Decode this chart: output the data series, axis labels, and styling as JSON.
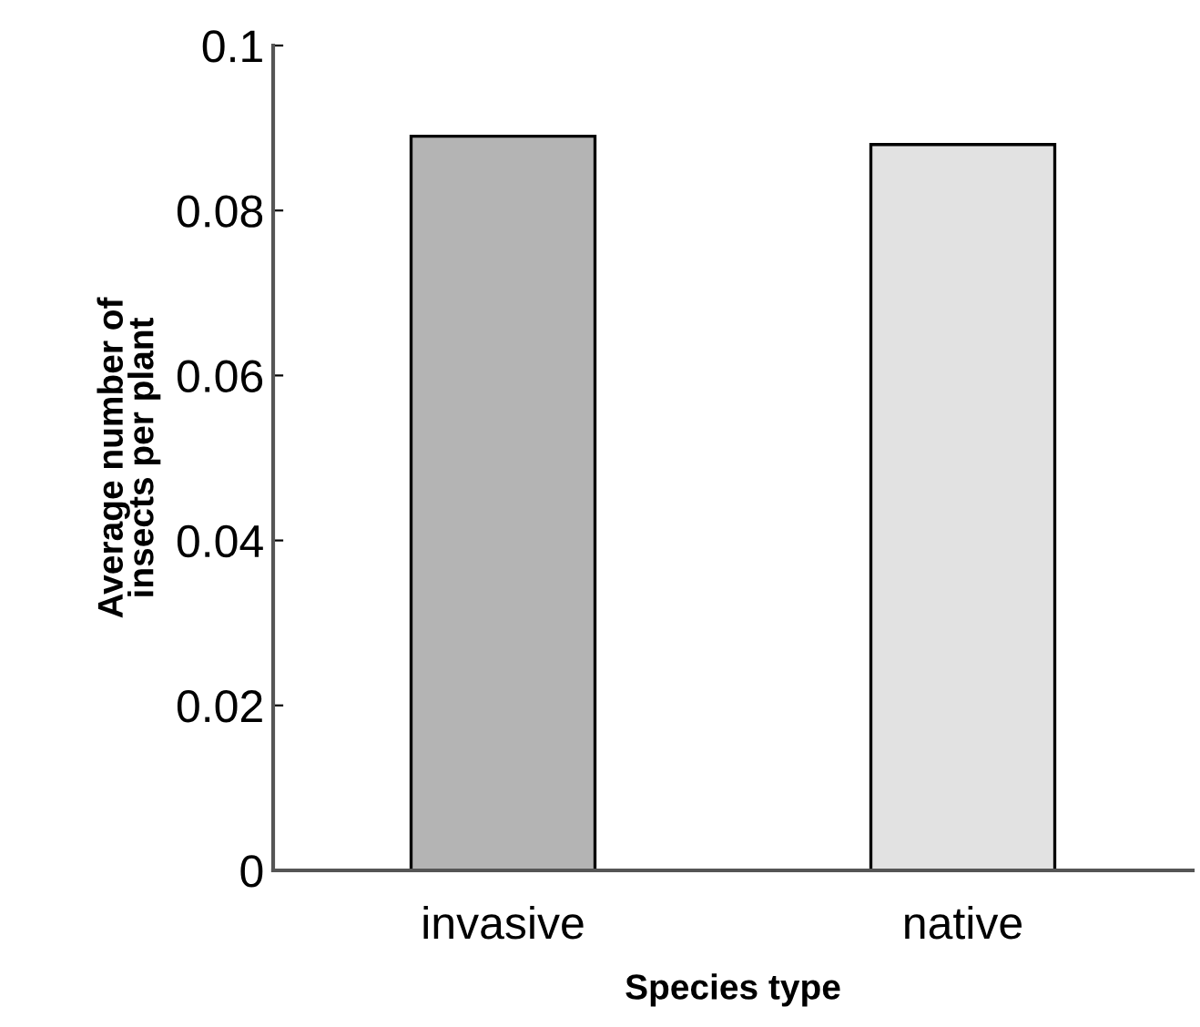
{
  "chart_data": {
    "type": "bar",
    "xlabel": "Species type",
    "ylabel": "Average number of\ninsects per plant",
    "categories": [
      "invasive",
      "native"
    ],
    "values": [
      0.089,
      0.088
    ],
    "colors": [
      "#b4b4b4",
      "#e2e2e2"
    ],
    "ylim": [
      0,
      0.1
    ],
    "yticks": [
      0,
      0.02,
      0.04,
      0.06,
      0.08,
      0.1
    ],
    "grid": false,
    "legend": false
  }
}
